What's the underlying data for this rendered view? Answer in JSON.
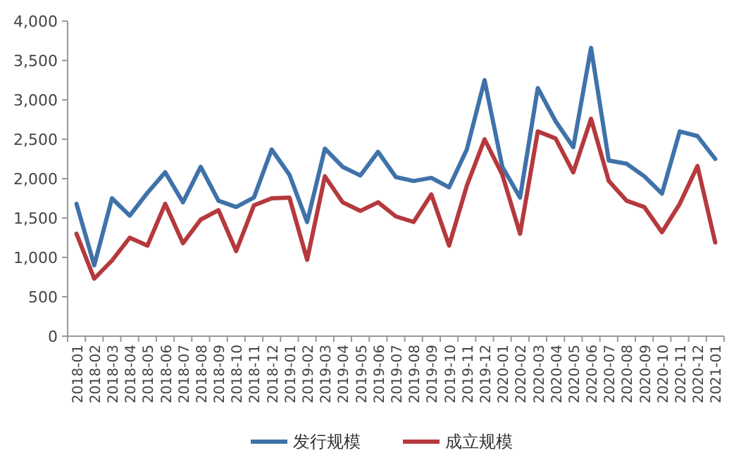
{
  "chart_data": {
    "type": "line",
    "categories": [
      "2018-01",
      "2018-02",
      "2018-03",
      "2018-04",
      "2018-05",
      "2018-06",
      "2018-07",
      "2018-08",
      "2018-09",
      "2018-10",
      "2018-11",
      "2018-12",
      "2019-01",
      "2019-02",
      "2019-03",
      "2019-04",
      "2019-05",
      "2019-06",
      "2019-07",
      "2019-08",
      "2019-09",
      "2019-10",
      "2019-11",
      "2019-12",
      "2020-01",
      "2020-02",
      "2020-03",
      "2020-04",
      "2020-05",
      "2020-06",
      "2020-07",
      "2020-08",
      "2020-09",
      "2020-10",
      "2020-11",
      "2020-12",
      "2021-01"
    ],
    "series": [
      {
        "name": "发行规模",
        "color": "#3f72a9",
        "values": [
          1680,
          900,
          1750,
          1530,
          1820,
          2080,
          1700,
          2150,
          1720,
          1640,
          1760,
          2370,
          2050,
          1450,
          2380,
          2150,
          2040,
          2340,
          2020,
          1970,
          2010,
          1890,
          2370,
          3250,
          2150,
          1760,
          3150,
          2730,
          2400,
          3660,
          2230,
          2190,
          2030,
          1810,
          2600,
          2540,
          2250
        ]
      },
      {
        "name": "成立规模",
        "color": "#b5393d",
        "values": [
          1300,
          730,
          960,
          1250,
          1150,
          1680,
          1180,
          1480,
          1600,
          1080,
          1660,
          1750,
          1760,
          970,
          2030,
          1700,
          1590,
          1700,
          1520,
          1450,
          1800,
          1150,
          1910,
          2500,
          2050,
          1300,
          2600,
          2510,
          2080,
          2760,
          1970,
          1720,
          1640,
          1320,
          1680,
          2160,
          1190
        ]
      }
    ],
    "ylim": [
      0,
      4000
    ],
    "yticks": [
      {
        "value": 0,
        "label": "0"
      },
      {
        "value": 500,
        "label": "500"
      },
      {
        "value": 1000,
        "label": "1,000"
      },
      {
        "value": 1500,
        "label": "1,500"
      },
      {
        "value": 2000,
        "label": "2,000"
      },
      {
        "value": 2500,
        "label": "2,500"
      },
      {
        "value": 3000,
        "label": "3,000"
      },
      {
        "value": 3500,
        "label": "3,500"
      },
      {
        "value": 4000,
        "label": "4,000"
      }
    ],
    "grid": false,
    "legend": "bottom",
    "marker": "none",
    "line_style": "solid"
  }
}
